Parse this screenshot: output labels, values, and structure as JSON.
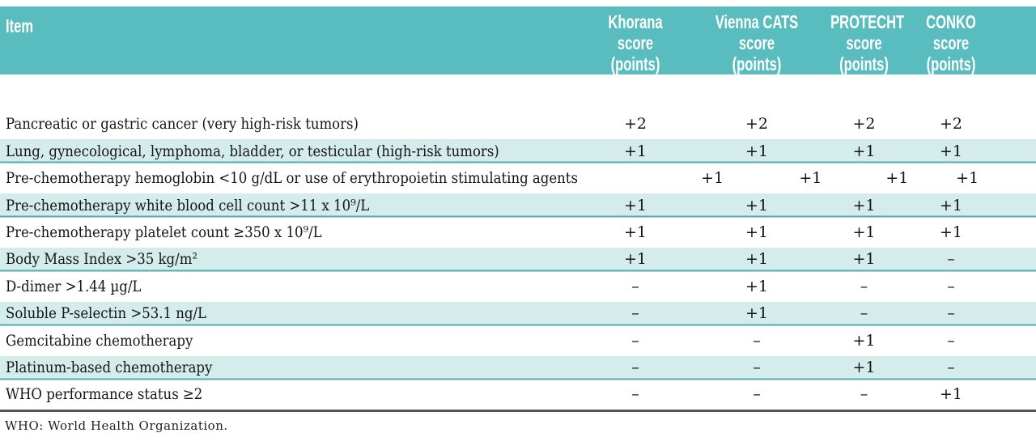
{
  "colors": {
    "header_bg": "#59bcbe",
    "row_alt_bg": "#d4eceb",
    "row_rule": "#53abad",
    "bottom_rule": "#555555",
    "header_text": "#ffffff",
    "body_text": "#161616"
  },
  "header": {
    "item_label": "Item",
    "score_columns": [
      {
        "name": "Khorana",
        "line2": "score",
        "line3": "(points)"
      },
      {
        "name": "Vienna CATS",
        "line2": "score",
        "line3": "(points)"
      },
      {
        "name": "PROTECHT",
        "line2": "score",
        "line3": "(points)"
      },
      {
        "name": "CONKO",
        "line2": "score",
        "line3": "(points)"
      }
    ]
  },
  "rows": [
    {
      "item": "Pancreatic or gastric cancer (very high-risk tumors)",
      "scores": [
        "+2",
        "+2",
        "+2",
        "+2"
      ]
    },
    {
      "item": "Lung, gynecological, lymphoma, bladder, or testicular (high-risk tumors)",
      "scores": [
        "+1",
        "+1",
        "+1",
        "+1"
      ]
    },
    {
      "item": "Pre-chemotherapy hemoglobin <10 g/dL or use of erythropoietin stimulating agents",
      "scores": [
        "+1",
        "+1",
        "+1",
        "+1"
      ]
    },
    {
      "item": "Pre-chemotherapy white blood cell count >11 x 10⁹/L",
      "scores": [
        "+1",
        "+1",
        "+1",
        "+1"
      ]
    },
    {
      "item": "Pre-chemotherapy platelet count ≥350 x 10⁹/L",
      "scores": [
        "+1",
        "+1",
        "+1",
        "+1"
      ]
    },
    {
      "item": "Body Mass Index >35 kg/m²",
      "scores": [
        "+1",
        "+1",
        "+1",
        "–"
      ]
    },
    {
      "item": "D-dimer >1.44 µg/L",
      "scores": [
        "–",
        "+1",
        "–",
        "–"
      ]
    },
    {
      "item": "Soluble P-selectin >53.1 ng/L",
      "scores": [
        "–",
        "+1",
        "–",
        "–"
      ]
    },
    {
      "item": "Gemcitabine chemotherapy",
      "scores": [
        "–",
        "–",
        "+1",
        "–"
      ]
    },
    {
      "item": "Platinum-based chemotherapy",
      "scores": [
        "–",
        "–",
        "+1",
        "–"
      ]
    },
    {
      "item": "WHO performance status ≥2",
      "scores": [
        "–",
        "–",
        "–",
        "+1"
      ]
    }
  ],
  "footnote": "WHO: World Health Organization."
}
